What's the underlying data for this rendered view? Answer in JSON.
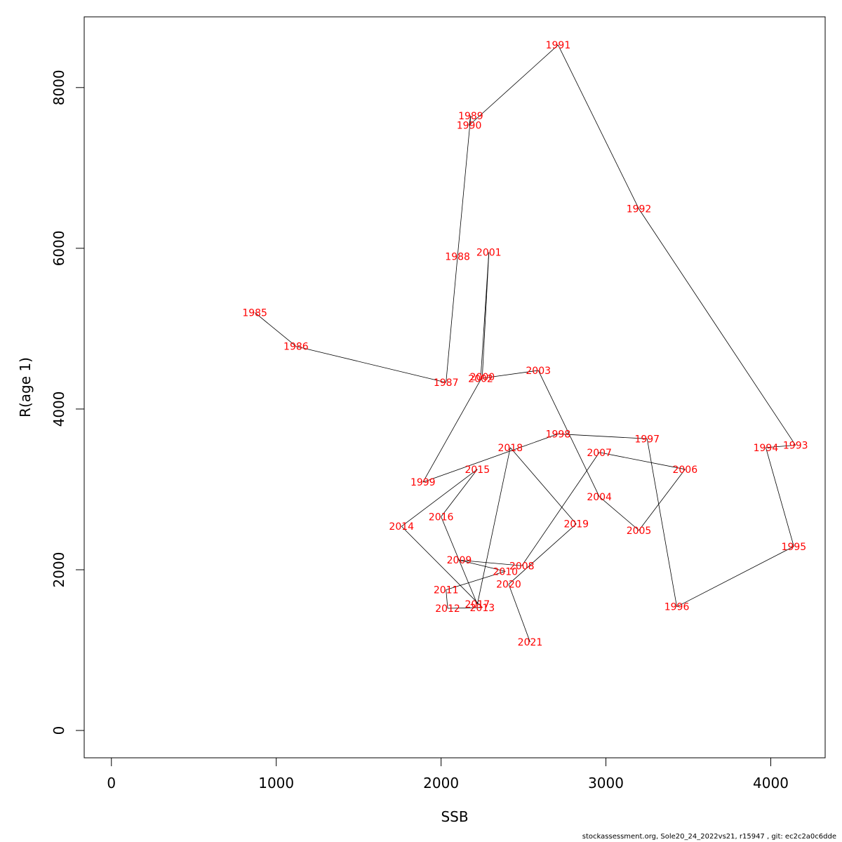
{
  "chart_data": {
    "type": "line",
    "title": "",
    "xlabel": "SSB",
    "ylabel": "R(age 1)",
    "xlim": [
      -165,
      4330
    ],
    "ylim": [
      -340,
      8880
    ],
    "x_ticks": [
      0,
      1000,
      2000,
      3000,
      4000
    ],
    "y_ticks": [
      0,
      2000,
      4000,
      6000,
      8000
    ],
    "grid": false,
    "colors": {
      "line": "#000000",
      "labels": "#ff0000"
    },
    "points": [
      {
        "year": "1985",
        "x": 870,
        "y": 5200
      },
      {
        "year": "1986",
        "x": 1120,
        "y": 4780
      },
      {
        "year": "1987",
        "x": 2030,
        "y": 4330
      },
      {
        "year": "1988",
        "x": 2100,
        "y": 5900
      },
      {
        "year": "1989",
        "x": 2180,
        "y": 7650
      },
      {
        "year": "1990",
        "x": 2170,
        "y": 7530
      },
      {
        "year": "1991",
        "x": 2710,
        "y": 8530
      },
      {
        "year": "1992",
        "x": 3200,
        "y": 6490
      },
      {
        "year": "1993",
        "x": 4150,
        "y": 3550
      },
      {
        "year": "1994",
        "x": 3970,
        "y": 3520
      },
      {
        "year": "1995",
        "x": 4140,
        "y": 2290
      },
      {
        "year": "1996",
        "x": 3430,
        "y": 1540
      },
      {
        "year": "1997",
        "x": 3250,
        "y": 3630
      },
      {
        "year": "1998",
        "x": 2710,
        "y": 3690
      },
      {
        "year": "1999",
        "x": 1890,
        "y": 3090
      },
      {
        "year": "2000",
        "x": 2250,
        "y": 4400
      },
      {
        "year": "2001",
        "x": 2290,
        "y": 5950
      },
      {
        "year": "2002",
        "x": 2240,
        "y": 4380
      },
      {
        "year": "2003",
        "x": 2590,
        "y": 4480
      },
      {
        "year": "2004",
        "x": 2960,
        "y": 2910
      },
      {
        "year": "2005",
        "x": 3200,
        "y": 2490
      },
      {
        "year": "2006",
        "x": 3480,
        "y": 3250
      },
      {
        "year": "2007",
        "x": 2960,
        "y": 3460
      },
      {
        "year": "2008",
        "x": 2490,
        "y": 2050
      },
      {
        "year": "2009",
        "x": 2110,
        "y": 2120
      },
      {
        "year": "2010",
        "x": 2390,
        "y": 1980
      },
      {
        "year": "2011",
        "x": 2030,
        "y": 1750
      },
      {
        "year": "2012",
        "x": 2040,
        "y": 1520
      },
      {
        "year": "2013",
        "x": 2250,
        "y": 1530
      },
      {
        "year": "2014",
        "x": 1760,
        "y": 2540
      },
      {
        "year": "2015",
        "x": 2220,
        "y": 3250
      },
      {
        "year": "2016",
        "x": 2000,
        "y": 2660
      },
      {
        "year": "2017",
        "x": 2220,
        "y": 1570
      },
      {
        "year": "2018",
        "x": 2420,
        "y": 3520
      },
      {
        "year": "2019",
        "x": 2820,
        "y": 2570
      },
      {
        "year": "2020",
        "x": 2410,
        "y": 1820
      },
      {
        "year": "2021",
        "x": 2540,
        "y": 1100
      }
    ]
  },
  "footer": "stockassessment.org, Sole20_24_2022vs21, r15947 , git: ec2c2a0c6dde"
}
